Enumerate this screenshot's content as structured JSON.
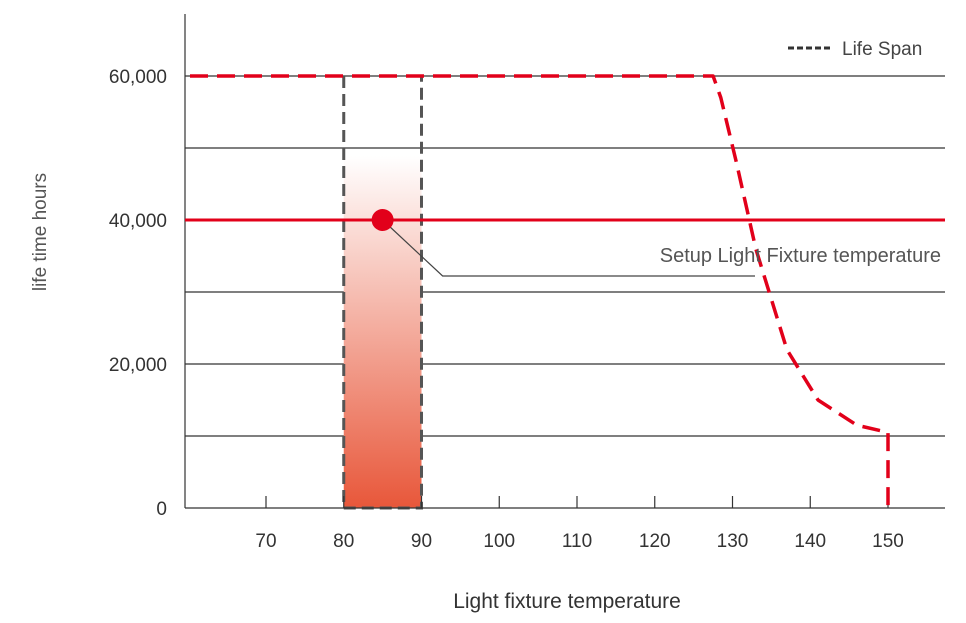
{
  "chart_data": {
    "type": "line",
    "xlabel": "Light fixture temperature",
    "ylabel": "life time hours",
    "x_ticks": [
      70,
      80,
      90,
      100,
      110,
      120,
      130,
      140,
      150
    ],
    "x_tick_labels": [
      "70",
      "80",
      "90",
      "100",
      "110",
      "120",
      "130",
      "140",
      "150"
    ],
    "y_ticks": [
      0,
      20000,
      40000,
      60000
    ],
    "y_tick_labels": [
      "0",
      "20,000",
      "40,000",
      "60,000"
    ],
    "y_gridlines": [
      10000,
      20000,
      30000,
      40000,
      50000,
      60000
    ],
    "xlim": [
      60,
      157
    ],
    "ylim": [
      0,
      70000
    ],
    "grid": "horizontal",
    "legend": {
      "position": "top-right",
      "entries": [
        "Life Span"
      ]
    },
    "series": [
      {
        "name": "Life Span",
        "style": "dashed",
        "color": "#e2001a",
        "x": [
          60,
          127.5,
          128.5,
          130.5,
          133,
          137,
          141,
          146,
          150,
          150
        ],
        "y": [
          60000,
          60000,
          57000,
          48000,
          36000,
          22000,
          15000,
          11500,
          10500,
          0
        ]
      }
    ],
    "reference_lines": [
      {
        "axis": "y",
        "value": 40000,
        "color": "#e2001a",
        "style": "solid"
      }
    ],
    "highlight_range": {
      "x": [
        80,
        90
      ],
      "y": [
        0,
        60000
      ],
      "gradient_from": "#e8573a",
      "gradient_to": "#ffffff"
    },
    "marker": {
      "x": 85,
      "y": 40000,
      "color": "#e2001a"
    },
    "annotations": [
      {
        "text": "Setup Light Fixture temperature",
        "target": "marker"
      }
    ]
  }
}
